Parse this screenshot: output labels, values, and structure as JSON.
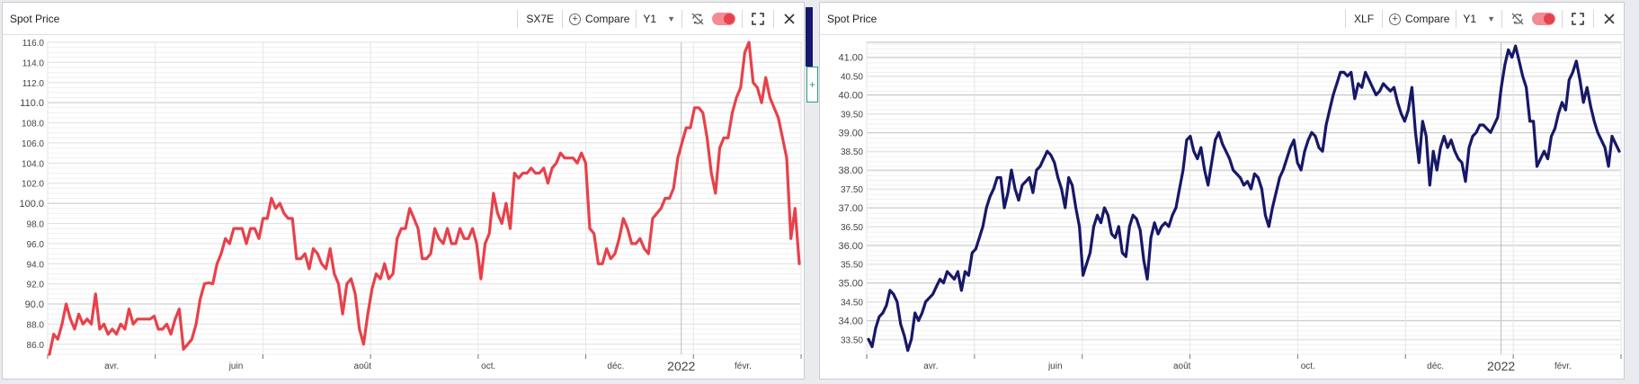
{
  "panels": [
    {
      "title": "Spot Price",
      "ticker": "SX7E",
      "compare_label": "Compare",
      "period": "Y1",
      "toggle_color": "#e8404d"
    },
    {
      "title": "Spot Price",
      "ticker": "XLF",
      "compare_label": "Compare",
      "period": "Y1",
      "toggle_color": "#e8404d"
    }
  ],
  "side_plus_label": "+",
  "chart_data": [
    {
      "type": "line",
      "color": "#e8414a",
      "ylim": [
        85,
        116
      ],
      "yticks": [
        "86.0",
        "88.0",
        "90.0",
        "92.0",
        "94.0",
        "96.0",
        "98.0",
        "100.0",
        "102.0",
        "104.0",
        "106.0",
        "108.0",
        "110.0",
        "112.0",
        "114.0",
        "116.0"
      ],
      "major_yticks": [
        "90.0",
        "100.0",
        "110.0"
      ],
      "xlabels": [
        {
          "label": "avr.",
          "pos": 0.085
        },
        {
          "label": "juin",
          "pos": 0.25
        },
        {
          "label": "août",
          "pos": 0.418
        },
        {
          "label": "oct.",
          "pos": 0.585
        },
        {
          "label": "déc.",
          "pos": 0.754
        },
        {
          "label": "2022",
          "pos": 0.841,
          "bold": true
        },
        {
          "label": "févr.",
          "pos": 0.923
        }
      ],
      "series": [
        {
          "values": [
            85,
            87,
            86.5,
            88,
            90,
            88.5,
            87.5,
            89,
            88,
            88.5,
            88,
            91,
            87.5,
            88,
            87,
            87.5,
            87,
            88,
            87.5,
            89.5,
            88,
            88.5,
            88.5,
            88.5,
            88.5,
            88.8,
            87.5,
            87.5,
            88,
            87,
            88.5,
            89.5,
            85.5,
            86,
            86.5,
            88,
            90.5,
            92,
            92.1,
            92,
            94,
            95,
            96.5,
            96,
            97.5,
            97.5,
            97.5,
            96,
            97.5,
            97.5,
            96.5,
            98.5,
            98.5,
            100.5,
            99.5,
            100,
            99,
            98.5,
            98.5,
            94.5,
            94.5,
            95,
            93.5,
            95.5,
            95,
            94,
            93.5,
            95.5,
            93,
            92,
            89,
            92,
            92.5,
            91,
            87.5,
            86,
            89,
            91.5,
            93,
            92.5,
            94,
            92.5,
            93,
            96.5,
            97.5,
            97.5,
            99.5,
            98.5,
            97.5,
            94.5,
            94.5,
            95,
            97.5,
            96.5,
            96,
            97.5,
            96,
            96,
            97.5,
            96.5,
            96.5,
            97.5,
            96,
            92.5,
            96,
            97,
            101,
            99,
            98,
            100,
            97.5,
            103,
            102.5,
            103,
            103,
            103.5,
            103,
            103,
            103.5,
            102,
            103.5,
            104,
            105,
            104.5,
            104.5,
            104.5,
            104,
            105,
            104,
            97.5,
            97,
            94,
            94,
            95.5,
            94.5,
            95,
            96.5,
            98.5,
            97.5,
            96,
            96,
            96.5,
            95.5,
            95,
            98.5,
            99,
            99.5,
            100.5,
            100.5,
            101.5,
            104.5,
            106,
            107.5,
            107.5,
            109.5,
            109.5,
            109,
            106.5,
            103,
            101,
            105.5,
            106.5,
            106.5,
            109,
            110.5,
            111.5,
            115,
            116,
            112,
            111.5,
            110,
            112.5,
            110.5,
            109.5,
            108.5,
            106.5,
            104.5,
            96.5,
            99.5,
            94
          ]
        }
      ]
    },
    {
      "type": "line",
      "color": "#171868",
      "ylim": [
        33.1,
        41.4
      ],
      "yticks": [
        "33.50",
        "34.00",
        "34.50",
        "35.00",
        "35.50",
        "36.00",
        "36.50",
        "37.00",
        "37.50",
        "38.00",
        "38.50",
        "39.00",
        "39.50",
        "40.00",
        "40.50",
        "41.00"
      ],
      "major_yticks": [
        "34.00",
        "35.00",
        "36.00",
        "37.00",
        "38.00",
        "39.00",
        "40.00",
        "41.00"
      ],
      "xlabels": [
        {
          "label": "avr.",
          "pos": 0.085
        },
        {
          "label": "juin",
          "pos": 0.25
        },
        {
          "label": "août",
          "pos": 0.418
        },
        {
          "label": "oct.",
          "pos": 0.585
        },
        {
          "label": "déc.",
          "pos": 0.754
        },
        {
          "label": "2022",
          "pos": 0.841,
          "bold": true
        },
        {
          "label": "févr.",
          "pos": 0.923
        }
      ],
      "series": [
        {
          "values": [
            33.5,
            33.3,
            33.8,
            34.1,
            34.2,
            34.4,
            34.8,
            34.7,
            34.5,
            33.9,
            33.6,
            33.2,
            33.5,
            34.2,
            34.0,
            34.2,
            34.5,
            34.6,
            34.7,
            34.9,
            35.1,
            35.0,
            35.3,
            35.2,
            35.1,
            35.3,
            34.8,
            35.3,
            35.2,
            35.8,
            35.9,
            36.2,
            36.5,
            37.0,
            37.3,
            37.5,
            37.8,
            37.8,
            37.0,
            37.4,
            38.0,
            37.5,
            37.2,
            37.6,
            37.7,
            37.8,
            37.4,
            38.0,
            38.1,
            38.3,
            38.5,
            38.4,
            38.2,
            37.8,
            37.5,
            37.0,
            37.8,
            37.6,
            37.0,
            36.5,
            35.2,
            35.5,
            35.8,
            36.5,
            36.8,
            36.6,
            37.0,
            36.8,
            36.3,
            36.2,
            36.5,
            35.8,
            35.7,
            36.5,
            36.8,
            36.7,
            36.4,
            35.6,
            35.1,
            36.2,
            36.6,
            36.3,
            36.5,
            36.6,
            36.5,
            36.8,
            37.0,
            37.5,
            38.0,
            38.8,
            38.9,
            38.5,
            38.3,
            38.6,
            38.0,
            37.6,
            38.2,
            38.8,
            39.0,
            38.7,
            38.5,
            38.3,
            38.0,
            37.9,
            37.8,
            37.6,
            37.7,
            37.5,
            37.9,
            37.8,
            37.5,
            36.8,
            36.5,
            37.0,
            37.4,
            37.8,
            38.0,
            38.3,
            38.6,
            38.8,
            38.2,
            38.0,
            38.5,
            38.8,
            39.0,
            38.9,
            38.6,
            38.5,
            39.2,
            39.6,
            40.0,
            40.3,
            40.6,
            40.6,
            40.5,
            40.6,
            39.9,
            40.3,
            40.2,
            40.6,
            40.4,
            40.2,
            40.0,
            40.1,
            40.3,
            40.2,
            40.1,
            40.2,
            39.8,
            39.5,
            39.3,
            39.6,
            40.2,
            39.0,
            38.2,
            39.3,
            38.9,
            37.6,
            38.5,
            38.0,
            38.6,
            38.9,
            38.6,
            38.8,
            38.5,
            38.3,
            38.2,
            37.7,
            38.6,
            38.9,
            39.0,
            39.2,
            39.2,
            39.1,
            39.0,
            39.2,
            39.4,
            40.2,
            40.8,
            41.2,
            41.0,
            41.3,
            40.9,
            40.5,
            40.2,
            39.3,
            39.3,
            38.1,
            38.3,
            38.5,
            38.3,
            38.9,
            39.1,
            39.5,
            39.8,
            39.6,
            40.4,
            40.6,
            40.9,
            40.4,
            39.8,
            40.2,
            39.7,
            39.3,
            39.0,
            38.8,
            38.6,
            38.1,
            38.9,
            38.7,
            38.5
          ]
        }
      ]
    }
  ]
}
